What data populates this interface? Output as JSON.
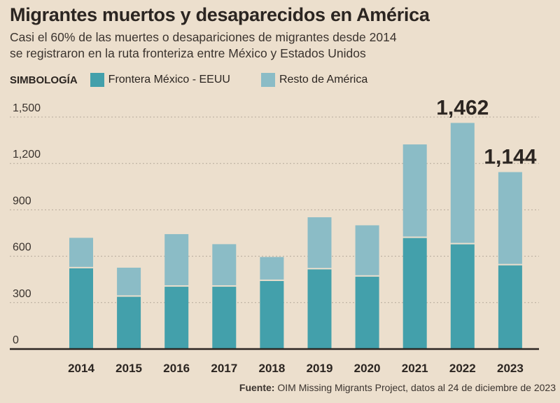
{
  "title": "Migrantes muertos y desaparecidos en América",
  "subtitle_line1": "Casi el 60% de las muertes o desapariciones de migrantes desde 2014",
  "subtitle_line2": "se registraron en la ruta fronteriza entre México y Estados Unidos",
  "legend_title": "SIMBOLOGÍA",
  "source_label": "Fuente:",
  "source_text": "OIM Missing Migrants Project, datos al 24 de diciembre de 2023",
  "chart_data": {
    "type": "bar",
    "stacked": true,
    "categories": [
      "2014",
      "2015",
      "2016",
      "2017",
      "2018",
      "2019",
      "2020",
      "2021",
      "2022",
      "2023"
    ],
    "series": [
      {
        "name": "Frontera México - EEUU",
        "color": "#43a0ab",
        "values": [
          522,
          338,
          403,
          403,
          440,
          515,
          468,
          718,
          677,
          541
        ]
      },
      {
        "name": "Resto de América",
        "color": "#8bbcc6",
        "values": [
          197,
          188,
          340,
          275,
          155,
          337,
          332,
          605,
          785,
          603
        ]
      }
    ],
    "yticks": [
      "0",
      "300",
      "600",
      "900",
      "1,200",
      "1,500"
    ],
    "ytick_values": [
      0,
      300,
      600,
      900,
      1200,
      1500
    ],
    "ylim": [
      0,
      1500
    ],
    "grid": true,
    "legend_position": "top-left",
    "annotations": [
      {
        "category": "2022",
        "label": "1,462"
      },
      {
        "category": "2023",
        "label": "1,144"
      }
    ]
  }
}
